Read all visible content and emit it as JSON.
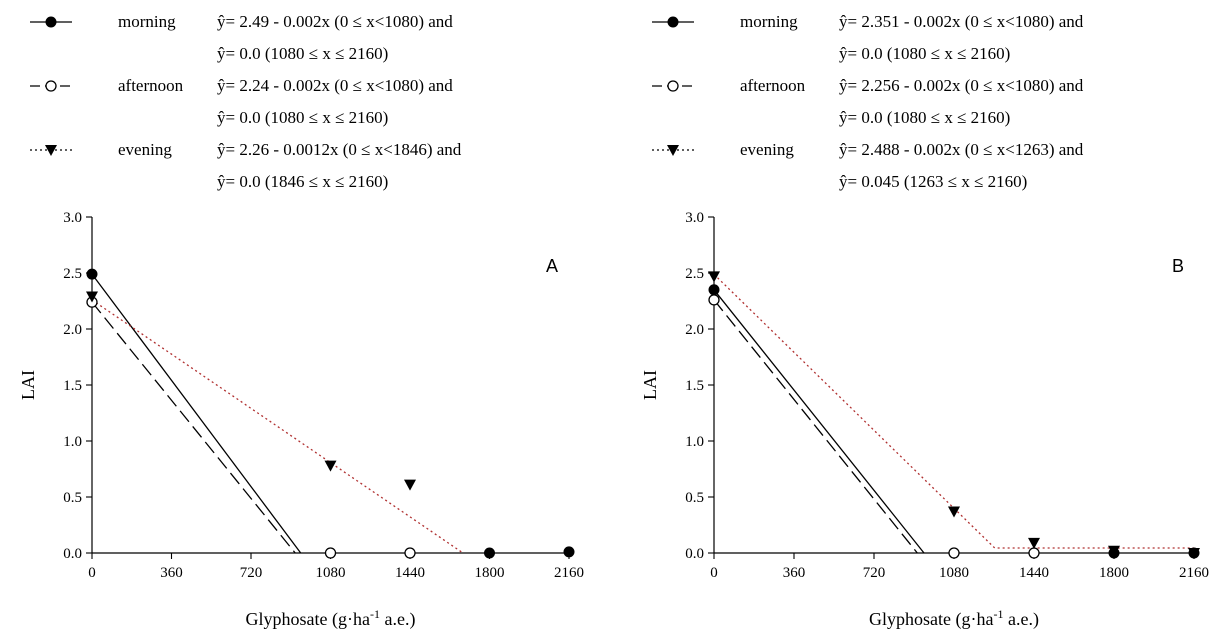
{
  "chart_data": [
    {
      "type": "scatter",
      "panel_label": "A",
      "xlabel": {
        "main": "Glyphosate (g·ha",
        "sup": "-1",
        "tail": " a.e.)"
      },
      "ylabel": "LAI",
      "xlim": [
        0,
        2160
      ],
      "ylim": [
        0,
        3.0
      ],
      "xticks": [
        "0",
        "360",
        "720",
        "1080",
        "1440",
        "1800",
        "2160"
      ],
      "yticks": [
        "0.0",
        "0.5",
        "1.0",
        "1.5",
        "2.0",
        "2.5",
        "3.0"
      ],
      "legend_position": "top",
      "series": [
        {
          "name": "morning",
          "marker": "filled-circle",
          "line": "solid",
          "line_color": "#000000",
          "equation": [
            "ŷ= 2.49 - 0.002x (0 ≤ x<1080) and",
            "ŷ= 0.0 (1080 ≤ x ≤ 2160)"
          ],
          "points": [
            [
              0,
              2.49
            ],
            [
              1800,
              0.0
            ],
            [
              2160,
              0.01
            ]
          ],
          "fit": [
            [
              0,
              2.49
            ],
            [
              945,
              0.0
            ]
          ]
        },
        {
          "name": "afternoon",
          "marker": "open-circle",
          "line": "dashed",
          "line_color": "#000000",
          "equation": [
            "ŷ= 2.24 - 0.002x (0 ≤ x<1080) and",
            "ŷ= 0.0 (1080 ≤ x ≤ 2160)"
          ],
          "points": [
            [
              0,
              2.24
            ],
            [
              1080,
              0.0
            ],
            [
              1440,
              0.0
            ]
          ],
          "fit": [
            [
              0,
              2.24
            ],
            [
              920,
              0.0
            ]
          ]
        },
        {
          "name": "evening",
          "marker": "filled-triangle-down",
          "line": "dotted",
          "line_color": "#b03030",
          "equation": [
            "ŷ= 2.26 - 0.0012x (0 ≤ x<1846) and",
            "ŷ= 0.0 (1846 ≤ x ≤ 2160)"
          ],
          "points": [
            [
              0,
              2.29
            ],
            [
              1080,
              0.78
            ],
            [
              1440,
              0.61
            ]
          ],
          "fit": [
            [
              0,
              2.26
            ],
            [
              1680,
              0.0
            ]
          ]
        }
      ]
    },
    {
      "type": "scatter",
      "panel_label": "B",
      "xlabel": {
        "main": "Glyphosate (g·ha",
        "sup": "-1",
        "tail": " a.e.)"
      },
      "ylabel": "LAI",
      "xlim": [
        0,
        2160
      ],
      "ylim": [
        0,
        3.0
      ],
      "xticks": [
        "0",
        "360",
        "720",
        "1080",
        "1440",
        "1800",
        "2160"
      ],
      "yticks": [
        "0.0",
        "0.5",
        "1.0",
        "1.5",
        "2.0",
        "2.5",
        "3.0"
      ],
      "legend_position": "top",
      "series": [
        {
          "name": "morning",
          "marker": "filled-circle",
          "line": "solid",
          "line_color": "#000000",
          "equation": [
            "ŷ= 2.351 - 0.002x (0 ≤ x<1080) and",
            "ŷ= 0.0 (1080 ≤ x ≤ 2160)"
          ],
          "points": [
            [
              0,
              2.35
            ],
            [
              1800,
              0.0
            ],
            [
              2160,
              0.0
            ]
          ],
          "fit": [
            [
              0,
              2.35
            ],
            [
              945,
              0.0
            ]
          ]
        },
        {
          "name": "afternoon",
          "marker": "open-circle",
          "line": "dashed",
          "line_color": "#000000",
          "equation": [
            "ŷ= 2.256 - 0.002x (0 ≤ x<1080) and",
            "ŷ= 0.0 (1080 ≤ x ≤ 2160)"
          ],
          "points": [
            [
              0,
              2.26
            ],
            [
              1080,
              0.0
            ],
            [
              1440,
              0.0
            ]
          ],
          "fit": [
            [
              0,
              2.26
            ],
            [
              915,
              0.0
            ]
          ]
        },
        {
          "name": "evening",
          "marker": "filled-triangle-down",
          "line": "dotted",
          "line_color": "#b03030",
          "equation": [
            "ŷ= 2.488 - 0.002x (0 ≤ x<1263) and",
            "ŷ= 0.045 (1263 ≤ x ≤ 2160)"
          ],
          "points": [
            [
              0,
              2.47
            ],
            [
              1080,
              0.37
            ],
            [
              1440,
              0.09
            ],
            [
              1800,
              0.02
            ],
            [
              2160,
              0.0
            ]
          ],
          "fit": [
            [
              0,
              2.488
            ],
            [
              1263,
              0.045
            ],
            [
              2160,
              0.045
            ]
          ]
        }
      ]
    }
  ]
}
